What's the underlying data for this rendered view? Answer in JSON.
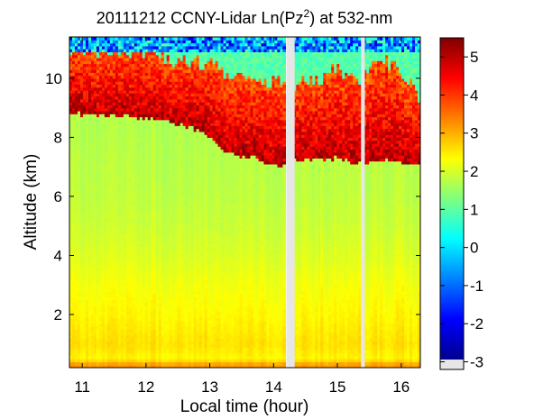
{
  "chart_data": {
    "type": "heatmap",
    "title_parts": {
      "pre": "20111212 CCNY-Lidar Ln(Pz",
      "sup": "2",
      "post": ") at 532-nm"
    },
    "xlabel": "Local time (hour)",
    "ylabel": "Altitude (km)",
    "xlim": [
      10.8,
      16.3
    ],
    "ylim": [
      0.2,
      11.4
    ],
    "x_ticks": [
      "11",
      "12",
      "13",
      "14",
      "15",
      "16"
    ],
    "x_tick_values": [
      11,
      12,
      13,
      14,
      15,
      16
    ],
    "y_ticks": [
      "2",
      "4",
      "6",
      "8",
      "10"
    ],
    "y_tick_values": [
      2,
      4,
      6,
      8,
      10
    ],
    "colorbar": {
      "range": [
        -3.2,
        5.5
      ],
      "ticks": [
        "-3",
        "-2",
        "-1",
        "0",
        "1",
        "2",
        "3",
        "4",
        "5"
      ],
      "tick_values": [
        -3,
        -2,
        -1,
        0,
        1,
        2,
        3,
        4,
        5
      ],
      "colormap": "jet",
      "no_data_color": "#e6e6e6"
    },
    "data_gaps_hours": [
      [
        14.2,
        14.33
      ],
      [
        15.37,
        15.43
      ]
    ],
    "cloud_base_km": {
      "time": [
        10.8,
        11.3,
        11.8,
        12.3,
        12.6,
        12.9,
        13.1,
        13.3,
        13.6,
        14.0,
        14.2,
        14.33,
        14.7,
        15.0,
        15.37,
        15.5,
        15.8,
        16.3
      ],
      "value": [
        8.8,
        8.75,
        8.7,
        8.6,
        8.4,
        8.2,
        7.8,
        7.5,
        7.35,
        7.1,
        7.05,
        7.25,
        7.3,
        7.3,
        7.1,
        7.15,
        7.2,
        7.1
      ]
    },
    "cloud_top_km": {
      "time": [
        10.8,
        11.5,
        12.0,
        12.5,
        13.0,
        13.5,
        14.2,
        14.33,
        14.7,
        15.0,
        15.37,
        15.6,
        15.9,
        16.3
      ],
      "value": [
        10.9,
        11.0,
        10.9,
        10.6,
        10.5,
        10.0,
        9.9,
        9.7,
        10.0,
        10.3,
        10.0,
        10.5,
        10.6,
        9.3
      ]
    },
    "background_profile": {
      "altitude_km": [
        0.2,
        0.3,
        0.5,
        1.0,
        2.0,
        3.0,
        4.0,
        5.0,
        6.0,
        7.0,
        8.0,
        9.0
      ],
      "value": [
        3.0,
        3.2,
        2.3,
        2.5,
        2.3,
        2.15,
        1.95,
        1.8,
        1.7,
        1.65,
        1.6,
        1.55
      ]
    },
    "upper_noise_range": [
      -2.5,
      0.8
    ],
    "above_cloud_value": 0.8
  }
}
